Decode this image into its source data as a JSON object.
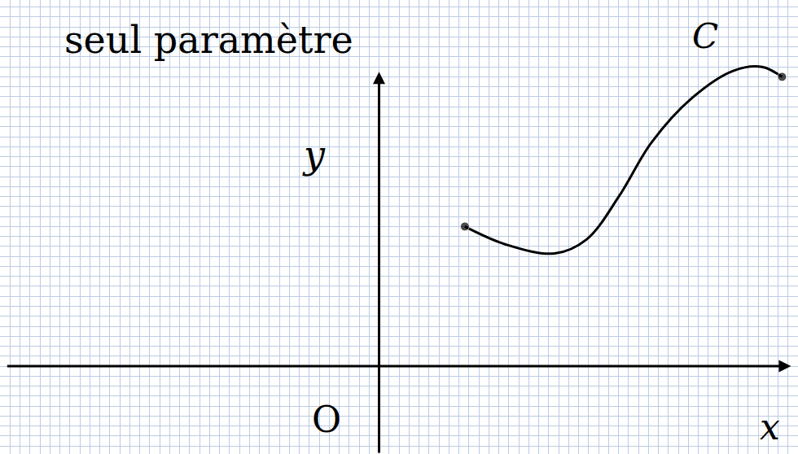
{
  "chart_data": {
    "type": "line",
    "title": "seul paramètre",
    "x_label": "x",
    "y_label": "y",
    "annotations": [
      "O",
      "C"
    ],
    "x": [
      8.6,
      12.7,
      17.6,
      20.8,
      24.1,
      27.3,
      31.4,
      35.5,
      38.4,
      40.4
    ],
    "values": [
      14.0,
      12.2,
      11.3,
      12.7,
      17.1,
      22.4,
      26.9,
      29.6,
      30.0,
      29.0
    ],
    "color": "#000000",
    "marker": "circle",
    "line_style": "solid",
    "xlim": [
      -38,
      42
    ],
    "ylim": [
      -8.8,
      36.7
    ],
    "xticks": [
      -38,
      -37,
      -36,
      -35,
      -34,
      -33,
      -32,
      -31,
      -30,
      -29,
      -28,
      -27,
      -26,
      -25,
      -24,
      -23,
      -22,
      -21,
      -20,
      -19,
      -18,
      -17,
      -16,
      -15,
      -14,
      -13,
      -12,
      -11,
      -10,
      -9,
      -8,
      -7,
      -6,
      -5,
      -4,
      -3,
      -2,
      -1,
      0,
      1,
      2,
      3,
      4,
      5,
      6,
      7,
      8,
      9,
      10,
      11,
      12,
      13,
      14,
      15,
      16,
      17,
      18,
      19,
      20,
      21,
      22,
      23,
      24,
      25,
      26,
      27,
      28,
      29,
      30,
      31,
      32,
      33,
      34,
      35,
      36,
      37,
      38,
      39,
      40,
      41,
      42
    ],
    "yticks": [
      -8,
      -7,
      -6,
      -5,
      -4,
      -3,
      -2,
      -1,
      0,
      1,
      2,
      3,
      4,
      5,
      6,
      7,
      8,
      9,
      10,
      11,
      12,
      13,
      14,
      15,
      16,
      17,
      18,
      19,
      20,
      21,
      22,
      23,
      24,
      25,
      26,
      27,
      28,
      29,
      30,
      31,
      32,
      33,
      34,
      35,
      36
    ],
    "grid": true,
    "tick_labels": false
  }
}
